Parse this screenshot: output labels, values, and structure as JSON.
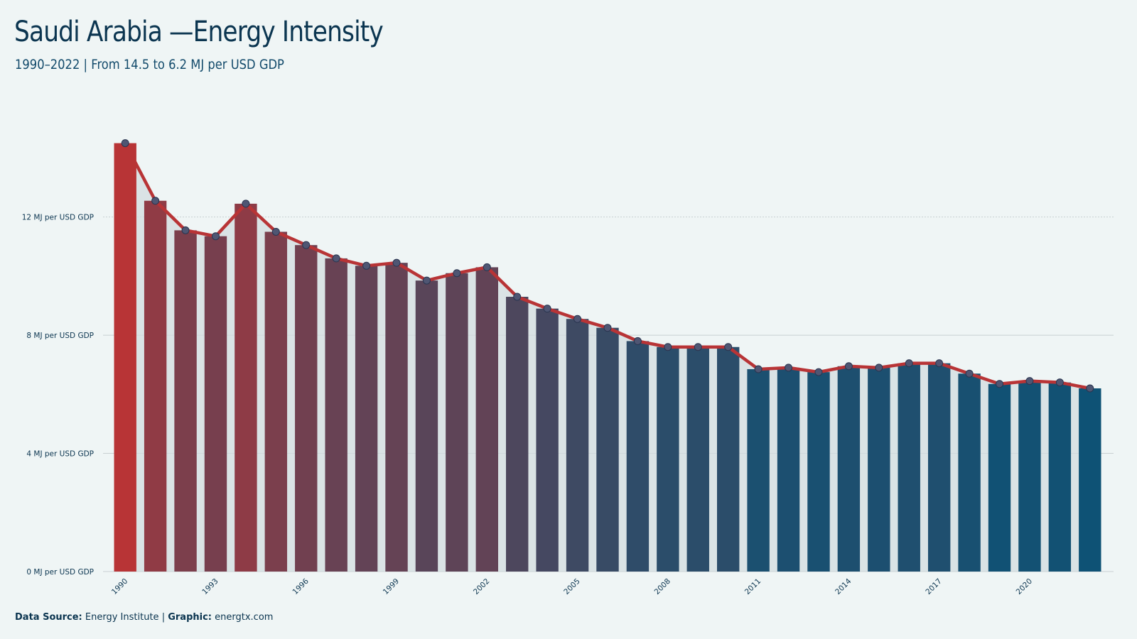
{
  "header": {
    "title": "Saudi Arabia —Energy Intensity",
    "subtitle": "1990–2022 | From 14.5 to 6.2 MJ per USD GDP"
  },
  "footer": {
    "source_label": "Data Source:",
    "source_value": "Energy Institute",
    "separator": "|",
    "graphic_label": "Graphic:",
    "graphic_value": "energtx.com"
  },
  "colors": {
    "background": "#eff5f5",
    "line": "#b83436",
    "bar_start": "#b83436",
    "bar_end": "#0e5275",
    "marker_fill": "#4f5673",
    "area_fill": "#d3dcdf",
    "grid": "#c8d0d2",
    "text": "#0b3550"
  },
  "chart_data": {
    "type": "bar",
    "overlay": "line",
    "title": "Saudi Arabia —Energy Intensity",
    "subtitle": "1990–2022 | From 14.5 to 6.2 MJ per USD GDP",
    "x": [
      1990,
      1991,
      1992,
      1993,
      1994,
      1995,
      1996,
      1997,
      1998,
      1999,
      2000,
      2001,
      2002,
      2003,
      2004,
      2005,
      2006,
      2007,
      2008,
      2009,
      2010,
      2011,
      2012,
      2013,
      2014,
      2015,
      2016,
      2017,
      2018,
      2019,
      2020,
      2021,
      2022
    ],
    "values": [
      14.5,
      12.55,
      11.55,
      11.35,
      12.45,
      11.5,
      11.05,
      10.6,
      10.35,
      10.45,
      9.85,
      10.1,
      10.3,
      9.3,
      8.9,
      8.55,
      8.25,
      7.8,
      7.6,
      7.6,
      7.6,
      6.85,
      6.9,
      6.75,
      6.95,
      6.9,
      7.05,
      7.05,
      6.7,
      6.35,
      6.45,
      6.4,
      6.2
    ],
    "x_tick_labels": [
      "1990",
      "1993",
      "1996",
      "1999",
      "2002",
      "2005",
      "2008",
      "2011",
      "2014",
      "2017",
      "2020"
    ],
    "y_ticks": [
      0,
      4,
      8,
      12
    ],
    "y_tick_labels": [
      "0 MJ per USD GDP",
      "4 MJ per USD GDP",
      "8 MJ per USD GDP",
      "12 MJ per USD GDP"
    ],
    "ylim": [
      0,
      15.5
    ],
    "xlabel": "",
    "ylabel": "",
    "grid": true,
    "legend": "none"
  }
}
